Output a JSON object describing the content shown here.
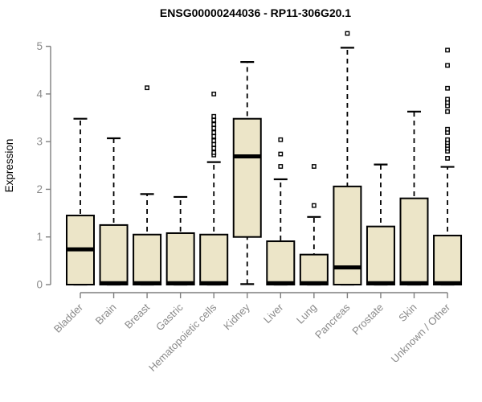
{
  "chart_data": {
    "type": "boxplot",
    "title": "ENSG00000244036 - RP11-306G20.1",
    "ylabel": "Expression",
    "xlabel": "",
    "ylim": [
      0,
      5
    ],
    "yticks": [
      0,
      1,
      2,
      3,
      4,
      5
    ],
    "grid": false,
    "legend": false,
    "categories": [
      "Bladder",
      "Brain",
      "Breast",
      "Gastric",
      "Hematopoietic cells",
      "Kidney",
      "Liver",
      "Lung",
      "Pancreas",
      "Prostate",
      "Skin",
      "Unknown / Other"
    ],
    "series": [
      {
        "name": "Bladder",
        "whisker_low": 0,
        "q1": 0,
        "median": 0.74,
        "q3": 1.45,
        "whisker_high": 3.48,
        "outliers": []
      },
      {
        "name": "Brain",
        "whisker_low": 0,
        "q1": 0,
        "median": 0.03,
        "q3": 1.25,
        "whisker_high": 3.07,
        "outliers": []
      },
      {
        "name": "Breast",
        "whisker_low": 0,
        "q1": 0,
        "median": 0.03,
        "q3": 1.05,
        "whisker_high": 1.9,
        "outliers": [
          4.13
        ]
      },
      {
        "name": "Gastric",
        "whisker_low": 0,
        "q1": 0,
        "median": 0.03,
        "q3": 1.08,
        "whisker_high": 1.84,
        "outliers": []
      },
      {
        "name": "Hematopoietic cells",
        "whisker_low": 0,
        "q1": 0,
        "median": 0.03,
        "q3": 1.05,
        "whisker_high": 2.57,
        "outliers": [
          2.72,
          2.77,
          2.86,
          2.94,
          3.02,
          3.11,
          3.19,
          3.28,
          3.36,
          3.45,
          3.53,
          4.0
        ]
      },
      {
        "name": "Kidney",
        "whisker_low": 0.01,
        "q1": 1.0,
        "median": 2.69,
        "q3": 3.48,
        "whisker_high": 4.67,
        "outliers": []
      },
      {
        "name": "Liver",
        "whisker_low": 0,
        "q1": 0,
        "median": 0.03,
        "q3": 0.91,
        "whisker_high": 2.21,
        "outliers": [
          2.48,
          2.74,
          3.04
        ]
      },
      {
        "name": "Lung",
        "whisker_low": 0,
        "q1": 0,
        "median": 0.03,
        "q3": 0.63,
        "whisker_high": 1.42,
        "outliers": [
          1.66,
          2.48
        ]
      },
      {
        "name": "Pancreas",
        "whisker_low": 0,
        "q1": 0,
        "median": 0.36,
        "q3": 2.06,
        "whisker_high": 4.97,
        "outliers": [
          5.27
        ]
      },
      {
        "name": "Prostate",
        "whisker_low": 0,
        "q1": 0,
        "median": 0.03,
        "q3": 1.22,
        "whisker_high": 2.52,
        "outliers": []
      },
      {
        "name": "Skin",
        "whisker_low": 0,
        "q1": 0,
        "median": 0.03,
        "q3": 1.81,
        "whisker_high": 3.63,
        "outliers": []
      },
      {
        "name": "Unknown / Other",
        "whisker_low": 0,
        "q1": 0,
        "median": 0.03,
        "q3": 1.03,
        "whisker_high": 2.47,
        "outliers": [
          2.65,
          2.8,
          2.86,
          2.92,
          2.98,
          3.04,
          3.19,
          3.26,
          3.63,
          3.75,
          3.82,
          3.89,
          4.12,
          4.6,
          4.92
        ]
      }
    ],
    "colors": {
      "background": "#FFFFFF",
      "box_fill": "#ECE5C8",
      "box_stroke": "#000000",
      "median": "#000000",
      "whisker": "#000000",
      "outlier_fill": "#FFFFFF",
      "axis": "#7F7F7F",
      "tick_label": "#8A8A8A",
      "title": "#000000"
    }
  }
}
